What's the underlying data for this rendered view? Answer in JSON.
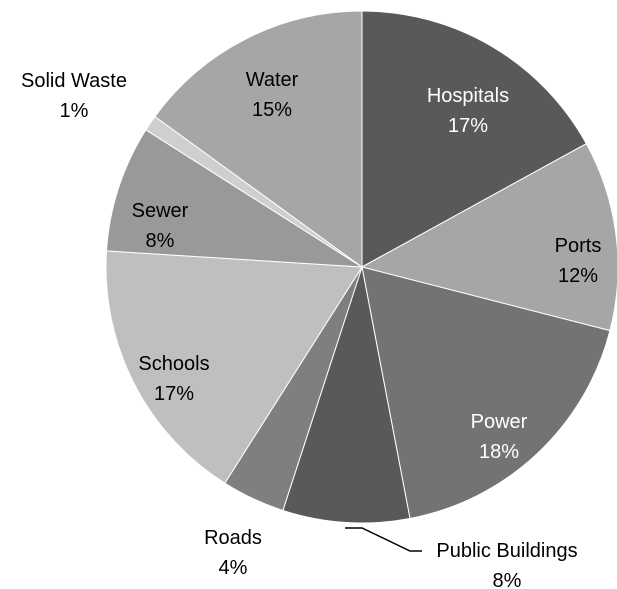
{
  "chart_data": {
    "type": "pie",
    "title": "",
    "slices": [
      {
        "label": "Hospitals",
        "value": 17,
        "value_label": "17%",
        "color": "#595959",
        "text_color": "#ffffff"
      },
      {
        "label": "Ports",
        "value": 12,
        "value_label": "12%",
        "color": "#a6a6a6",
        "text_color": "#000000"
      },
      {
        "label": "Power",
        "value": 18,
        "value_label": "18%",
        "color": "#737373",
        "text_color": "#ffffff"
      },
      {
        "label": "Public Buildings",
        "value": 8,
        "value_label": "8%",
        "color": "#595959",
        "text_color": "#000000"
      },
      {
        "label": "Roads",
        "value": 4,
        "value_label": "4%",
        "color": "#7f7f7f",
        "text_color": "#000000"
      },
      {
        "label": "Schools",
        "value": 17,
        "value_label": "17%",
        "color": "#bfbfbf",
        "text_color": "#000000"
      },
      {
        "label": "Sewer",
        "value": 8,
        "value_label": "8%",
        "color": "#999999",
        "text_color": "#000000"
      },
      {
        "label": "Solid Waste",
        "value": 1,
        "value_label": "1%",
        "color": "#cfcfcf",
        "text_color": "#000000"
      },
      {
        "label": "Water",
        "value": 15,
        "value_label": "15%",
        "color": "#a6a6a6",
        "text_color": "#000000"
      }
    ],
    "start_angle_deg": 0,
    "direction": "clockwise",
    "legend": "none",
    "data_labels": "category and percentage"
  }
}
